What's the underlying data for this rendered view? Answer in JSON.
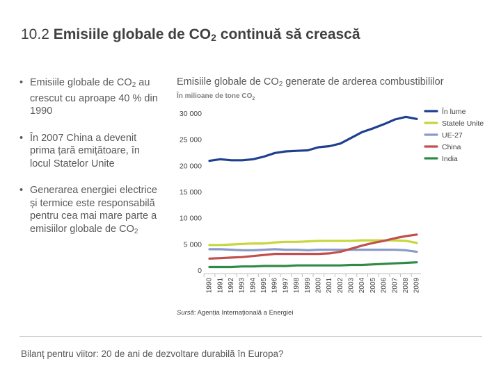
{
  "slide": {
    "title_number": "10.2",
    "title_main": "Emisiile globale de CO",
    "title_sub": "2",
    "title_end": "continuă să crească"
  },
  "bullets": [
    {
      "pre": "Emisiile globale de CO",
      "sub": "2",
      "post": " au crescut cu aproape 40 % din 1990"
    },
    {
      "pre": "În 2007 China a devenit prima țară emițătoare, în locul Statelor Unite",
      "sub": "",
      "post": ""
    },
    {
      "pre": "Generarea energiei electrice și termice este responsabilă pentru cea mai mare parte a emisiilor globale de CO",
      "sub": "2",
      "post": ""
    }
  ],
  "chart_header": {
    "title_pre": "Emisiile globale de CO",
    "title_sub": "2",
    "title_post": " generate de arderea combustibililor",
    "unit_pre": "În milioane de tone CO",
    "unit_sub": "2"
  },
  "source": {
    "label": "Sursă",
    "text": ": Agenția Internațională a Energiei"
  },
  "footer": "Bilanț pentru viitor: 20 de ani de dezvoltare durabilă în Europa?",
  "chart_data": {
    "type": "line",
    "title": "Emisiile globale de CO2 generate de arderea combustibililor",
    "ylabel": "În milioane de tone CO2",
    "x": [
      "1990",
      "1991",
      "1992",
      "1993",
      "1994",
      "1995",
      "1996",
      "1997",
      "1998",
      "1999",
      "2000",
      "2001",
      "2002",
      "2003",
      "2004",
      "2005",
      "2006",
      "2007",
      "2008",
      "2009"
    ],
    "ylim": [
      0,
      30000
    ],
    "yticks": [
      0,
      5000,
      10000,
      15000,
      20000,
      25000,
      30000
    ],
    "ytick_labels": [
      "0",
      "5 000",
      "10 000",
      "15 000",
      "20 000",
      "25 000",
      "30 000"
    ],
    "legend_position": "right",
    "series": [
      {
        "name": "În lume",
        "color": "#1f3f8f",
        "values": [
          20900,
          21200,
          21000,
          21000,
          21200,
          21700,
          22400,
          22700,
          22800,
          22900,
          23500,
          23700,
          24200,
          25300,
          26400,
          27100,
          27900,
          28800,
          29300,
          28900
        ]
      },
      {
        "name": "Statele Unite",
        "color": "#c6d63b",
        "values": [
          4800,
          4800,
          4900,
          5000,
          5100,
          5100,
          5300,
          5400,
          5400,
          5500,
          5600,
          5600,
          5600,
          5600,
          5700,
          5700,
          5700,
          5700,
          5600,
          5200
        ]
      },
      {
        "name": "UE-27",
        "color": "#8a9ac8",
        "values": [
          4000,
          4000,
          3900,
          3800,
          3800,
          3900,
          4000,
          3900,
          3900,
          3800,
          3900,
          3900,
          3900,
          3900,
          3900,
          3900,
          3900,
          3900,
          3800,
          3500
        ]
      },
      {
        "name": "China",
        "color": "#c0504d",
        "values": [
          2200,
          2300,
          2400,
          2500,
          2700,
          2900,
          3100,
          3100,
          3100,
          3100,
          3100,
          3200,
          3500,
          4100,
          4700,
          5200,
          5600,
          6100,
          6500,
          6800
        ]
      },
      {
        "name": "India",
        "color": "#2e8b45",
        "values": [
          600,
          600,
          600,
          700,
          700,
          800,
          800,
          800,
          900,
          900,
          900,
          900,
          900,
          1000,
          1000,
          1100,
          1200,
          1300,
          1400,
          1500
        ]
      }
    ]
  }
}
